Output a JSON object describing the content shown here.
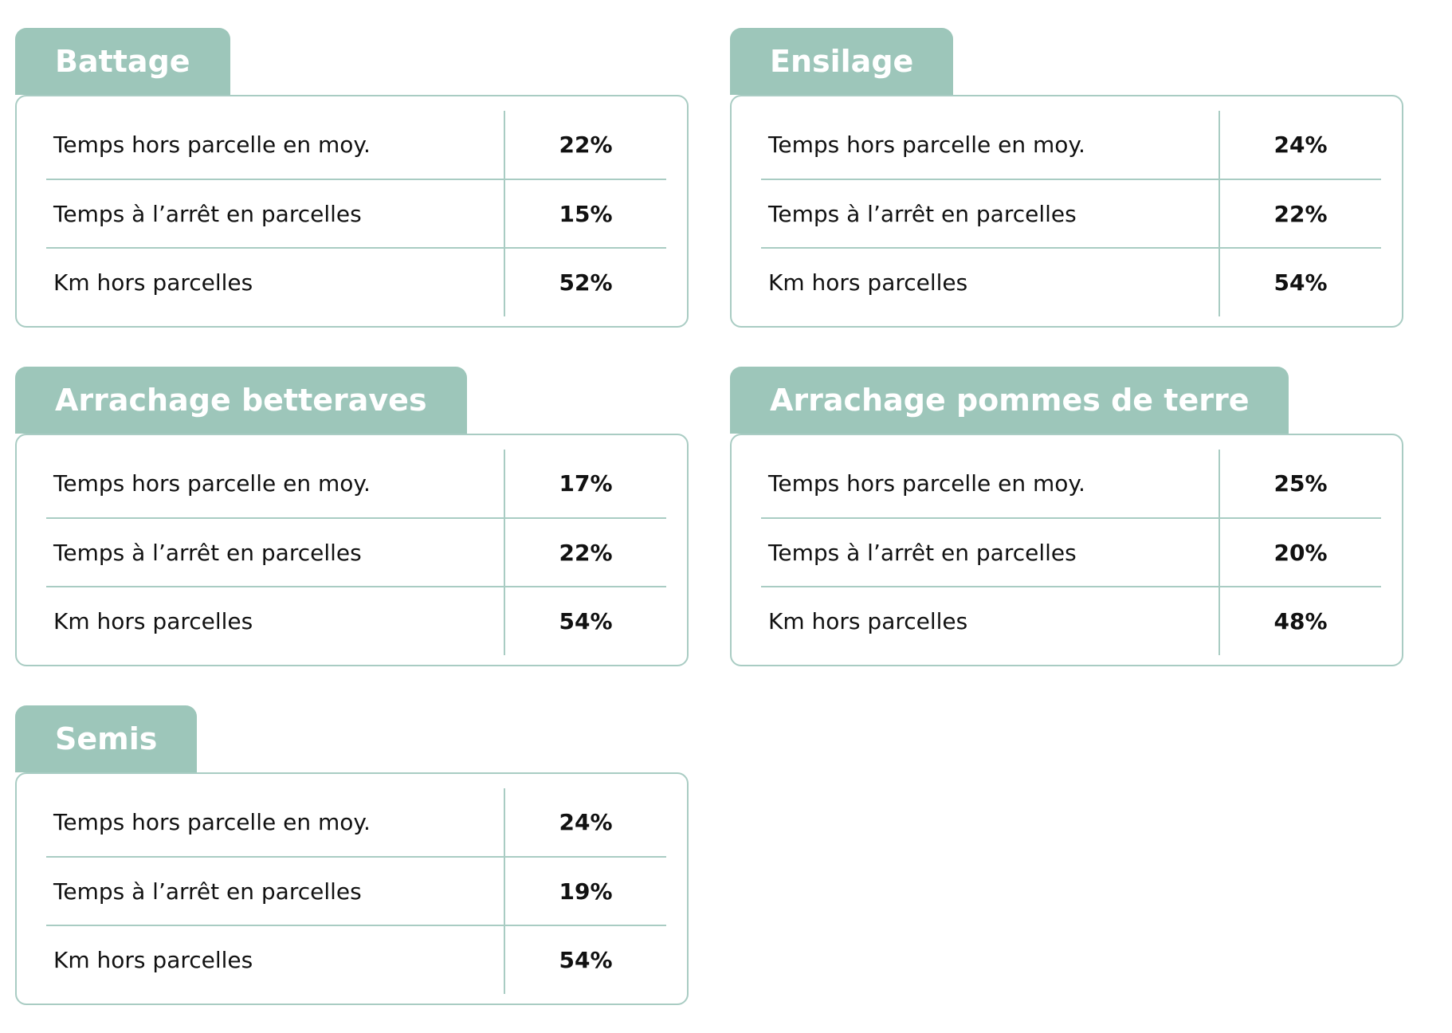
{
  "cards": [
    {
      "title": "Battage",
      "rows": [
        [
          "Temps hors parcelle en moy.",
          "22%"
        ],
        [
          "Temps à l’arrêt en parcelles",
          "15%"
        ],
        [
          "Km hors parcelles",
          "52%"
        ]
      ]
    },
    {
      "title": "Ensilage",
      "rows": [
        [
          "Temps hors parcelle en moy.",
          "24%"
        ],
        [
          "Temps à l’arrêt en parcelles",
          "22%"
        ],
        [
          "Km hors parcelles",
          "54%"
        ]
      ]
    },
    {
      "title": "Arrachage betteraves",
      "rows": [
        [
          "Temps hors parcelle en moy.",
          "17%"
        ],
        [
          "Temps à l’arrêt en parcelles",
          "22%"
        ],
        [
          "Km hors parcelles",
          "54%"
        ]
      ]
    },
    {
      "title": "Arrachage pommes de terre",
      "rows": [
        [
          "Temps hors parcelle en moy.",
          "25%"
        ],
        [
          "Temps à l’arrêt en parcelles",
          "20%"
        ],
        [
          "Km hors parcelles",
          "48%"
        ]
      ]
    },
    {
      "title": "Semis",
      "rows": [
        [
          "Temps hors parcelle en moy.",
          "24%"
        ],
        [
          "Temps à l’arrêt en parcelles",
          "19%"
        ],
        [
          "Km hors parcelles",
          "54%"
        ]
      ]
    }
  ]
}
